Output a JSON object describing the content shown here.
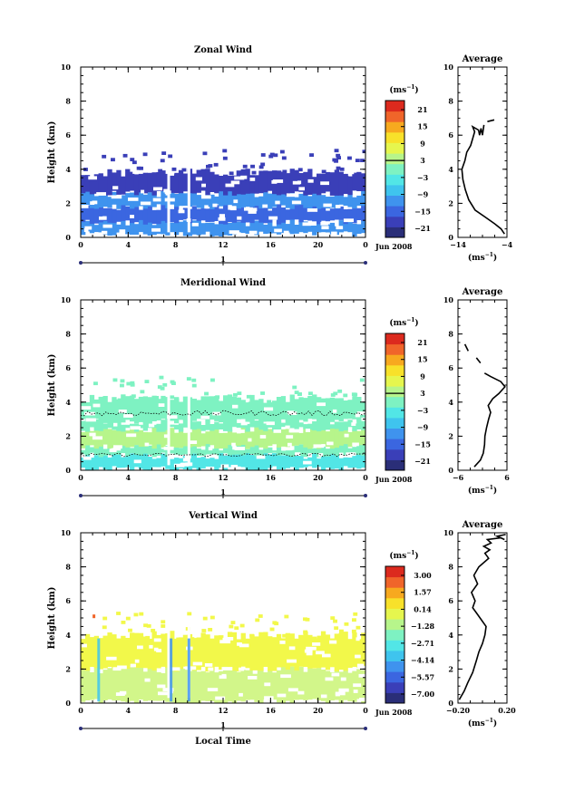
{
  "chart_data": [
    {
      "type": "heatmap",
      "title": "Zonal Wind",
      "ylabel": "Height (km)",
      "xlim": [
        0,
        24
      ],
      "ylim": [
        0,
        10
      ],
      "x_ticks": [
        "0",
        "4",
        "8",
        "12",
        "16",
        "20",
        "0"
      ],
      "y_ticks": [
        "0",
        "2",
        "4",
        "6",
        "8",
        "10"
      ],
      "date_marker": "1",
      "date_label": "Jun 2008",
      "colorbar": {
        "unit_base": "(ms",
        "unit_exp": "−1",
        "unit_close": ")",
        "ticks": [
          "21",
          "15",
          "9",
          "3",
          "−3",
          "−9",
          "−15",
          "−21"
        ],
        "colors": [
          "#2a2e78",
          "#3a3fb8",
          "#3b66e0",
          "#3f93ee",
          "#3fc4ee",
          "#52e6e6",
          "#7ef2c2",
          "#b7f58b",
          "#e6f64e",
          "#f8e12a",
          "#f7a91f",
          "#f0652a",
          "#dc2a1e"
        ],
        "zero_line": "3"
      },
      "field": {
        "layers": [
          {
            "from": 0.2,
            "to": 0.9,
            "color": "#3f93ee"
          },
          {
            "from": 0.9,
            "to": 1.8,
            "color": "#3b66e0"
          },
          {
            "from": 1.8,
            "to": 2.6,
            "color": "#3f93ee"
          },
          {
            "from": 2.6,
            "to": 3.8,
            "color": "#3a3fb8"
          }
        ],
        "top_height": 4.0,
        "value_range": "−21 to −9"
      },
      "profile": {
        "title": "Average",
        "xlabel_base": "(ms",
        "xlabel_exp": "−1",
        "xlabel_close": ")",
        "xlim": [
          -14,
          -4
        ],
        "x_ticks": [
          "−14",
          "−4"
        ],
        "y_ticks": [
          "0",
          "2",
          "4",
          "6",
          "8",
          "10"
        ],
        "segments": [
          [
            [
              -4.5,
              0.2
            ],
            [
              -5.2,
              0.5
            ],
            [
              -6.5,
              0.8
            ],
            [
              -8.5,
              1.2
            ],
            [
              -10.5,
              1.6
            ],
            [
              -11.8,
              2.2
            ],
            [
              -12.5,
              2.8
            ],
            [
              -13.0,
              3.4
            ],
            [
              -13.2,
              4.0
            ],
            [
              -12.6,
              4.5
            ],
            [
              -12.2,
              5.0
            ],
            [
              -11.4,
              5.4
            ],
            [
              -11.0,
              5.8
            ],
            [
              -10.6,
              6.2
            ],
            [
              -11.0,
              6.5
            ],
            [
              -9.8,
              6.3
            ],
            [
              -9.6,
              6.0
            ],
            [
              -9.3,
              6.4
            ],
            [
              -9.0,
              6.0
            ],
            [
              -8.7,
              6.6
            ]
          ],
          [
            [
              -8.0,
              6.8
            ],
            [
              -6.6,
              6.9
            ]
          ]
        ]
      }
    },
    {
      "type": "heatmap",
      "title": "Meridional Wind",
      "ylabel": "Height (km)",
      "xlim": [
        0,
        24
      ],
      "ylim": [
        0,
        10
      ],
      "x_ticks": [
        "0",
        "4",
        "8",
        "12",
        "16",
        "20",
        "0"
      ],
      "y_ticks": [
        "0",
        "2",
        "4",
        "6",
        "8",
        "10"
      ],
      "date_marker": "1",
      "date_label": "Jun 2008",
      "colorbar": {
        "unit_base": "(ms",
        "unit_exp": "−1",
        "unit_close": ")",
        "ticks": [
          "21",
          "15",
          "9",
          "3",
          "−3",
          "−9",
          "−15",
          "−21"
        ],
        "colors": [
          "#2a2e78",
          "#3a3fb8",
          "#3b66e0",
          "#3f93ee",
          "#3fc4ee",
          "#52e6e6",
          "#7ef2c2",
          "#b7f58b",
          "#e6f64e",
          "#f8e12a",
          "#f7a91f",
          "#f0652a",
          "#dc2a1e"
        ],
        "zero_line": "3"
      },
      "field": {
        "layers": [
          {
            "from": 0.1,
            "to": 0.9,
            "color": "#52e6e6"
          },
          {
            "from": 0.9,
            "to": 1.4,
            "color": "#7ef2c2"
          },
          {
            "from": 1.4,
            "to": 2.4,
            "color": "#b7f58b"
          },
          {
            "from": 2.4,
            "to": 2.9,
            "color": "#7ef2c2"
          },
          {
            "from": 2.9,
            "to": 4.2,
            "color": "#7ef2c2"
          }
        ],
        "top_height": 4.4,
        "value_range": "−9 to 9"
      },
      "profile": {
        "title": "Average",
        "xlabel_base": "(ms",
        "xlabel_exp": "−1",
        "xlabel_close": ")",
        "xlim": [
          -6,
          6
        ],
        "x_ticks": [
          "−6",
          "6"
        ],
        "y_ticks": [
          "0",
          "2",
          "4",
          "6",
          "8",
          "10"
        ],
        "segments": [
          [
            [
              -2.0,
              0.2
            ],
            [
              -0.5,
              0.6
            ],
            [
              0.2,
              1.0
            ],
            [
              0.5,
              1.5
            ],
            [
              0.6,
              2.0
            ],
            [
              1.0,
              2.5
            ],
            [
              1.5,
              3.0
            ],
            [
              2.0,
              3.4
            ],
            [
              1.4,
              3.8
            ],
            [
              2.5,
              4.2
            ],
            [
              4.0,
              4.5
            ],
            [
              5.5,
              4.9
            ],
            [
              4.5,
              5.2
            ],
            [
              2.0,
              5.5
            ],
            [
              0.5,
              5.7
            ]
          ],
          [
            [
              -0.5,
              6.3
            ],
            [
              -1.5,
              6.6
            ]
          ],
          [
            [
              -3.5,
              7.0
            ],
            [
              -4.3,
              7.4
            ]
          ]
        ]
      }
    },
    {
      "type": "heatmap",
      "title": "Vertical Wind",
      "ylabel": "Height (km)",
      "xlabel": "Local Time",
      "xlim": [
        0,
        24
      ],
      "ylim": [
        0,
        10
      ],
      "x_ticks": [
        "0",
        "4",
        "8",
        "12",
        "16",
        "20",
        "0"
      ],
      "y_ticks": [
        "0",
        "2",
        "4",
        "6",
        "8",
        "10"
      ],
      "date_marker": "1",
      "date_label": "Jun 2008",
      "colorbar": {
        "unit_base": "(ms",
        "unit_exp": "−1",
        "unit_close": ")",
        "ticks": [
          "3.00",
          "1.57",
          "0.14",
          "−1.28",
          "−2.71",
          "−4.14",
          "−5.57",
          "−7.00"
        ],
        "colors": [
          "#2a2e78",
          "#3a3fb8",
          "#3b66e0",
          "#3f93ee",
          "#3fc4ee",
          "#52e6e6",
          "#7ef2c2",
          "#b7f58b",
          "#e6f64e",
          "#f8e12a",
          "#f7a91f",
          "#f0652a",
          "#dc2a1e"
        ],
        "zero_line": ""
      },
      "field": {
        "layers": [
          {
            "from": 0.1,
            "to": 2.0,
            "color": "#d2f68a"
          },
          {
            "from": 2.0,
            "to": 4.0,
            "color": "#f2f84a"
          }
        ],
        "top_height": 4.2,
        "value_range": "−1.28 to 0.14"
      },
      "profile": {
        "title": "Average",
        "xlabel_base": "(ms",
        "xlabel_exp": "−1",
        "xlabel_close": ")",
        "xlim": [
          -0.2,
          0.2
        ],
        "x_ticks": [
          "−0.20",
          "0.20"
        ],
        "y_ticks": [
          "0",
          "2",
          "4",
          "6",
          "8",
          "10"
        ],
        "segments": [
          [
            [
              -0.19,
              0.2
            ],
            [
              -0.15,
              0.7
            ],
            [
              -0.12,
              1.2
            ],
            [
              -0.08,
              1.8
            ],
            [
              -0.05,
              2.5
            ],
            [
              -0.03,
              3.0
            ],
            [
              0.0,
              3.5
            ],
            [
              0.02,
              4.0
            ],
            [
              0.03,
              4.5
            ],
            [
              -0.02,
              5.0
            ],
            [
              -0.05,
              5.3
            ],
            [
              -0.08,
              5.6
            ],
            [
              -0.06,
              6.0
            ],
            [
              -0.09,
              6.5
            ],
            [
              -0.04,
              7.0
            ],
            [
              -0.07,
              7.5
            ],
            [
              -0.03,
              8.0
            ],
            [
              0.05,
              8.5
            ],
            [
              0.02,
              8.8
            ],
            [
              0.06,
              9.0
            ],
            [
              0.01,
              9.2
            ],
            [
              0.07,
              9.4
            ],
            [
              0.04,
              9.6
            ],
            [
              0.15,
              9.7
            ],
            [
              0.18,
              9.6
            ],
            [
              0.12,
              9.8
            ],
            [
              0.19,
              9.9
            ]
          ]
        ]
      }
    }
  ]
}
